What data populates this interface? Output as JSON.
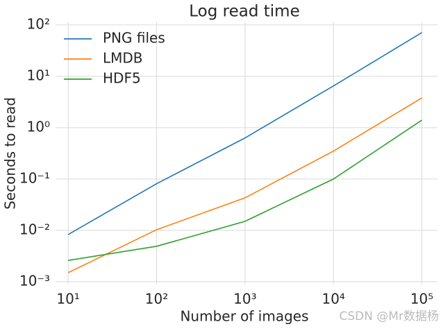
{
  "chart_data": {
    "type": "line",
    "title": "Log read time",
    "x_label": "Number of images",
    "y_label": "Seconds to read",
    "x": [
      10,
      100,
      1000,
      10000,
      100000
    ],
    "series": [
      {
        "name": "PNG files",
        "color": "#1f77b4",
        "values": [
          0.0083,
          0.081,
          0.63,
          6.5,
          71
        ]
      },
      {
        "name": "LMDB",
        "color": "#ff7f0e",
        "values": [
          0.0015,
          0.0103,
          0.043,
          0.35,
          3.8
        ]
      },
      {
        "name": "HDF5",
        "color": "#2ca02c",
        "values": [
          0.0026,
          0.0049,
          0.015,
          0.1,
          1.4
        ]
      }
    ],
    "xscale": "log",
    "yscale": "log",
    "xlim": [
      7.2,
      150000
    ],
    "ylim": [
      0.00088,
      113
    ],
    "xticks": [
      {
        "value": 10,
        "label": "10¹"
      },
      {
        "value": 100,
        "label": "10²"
      },
      {
        "value": 1000,
        "label": "10³"
      },
      {
        "value": 10000,
        "label": "10⁴"
      },
      {
        "value": 100000,
        "label": "10⁵"
      }
    ],
    "yticks": [
      {
        "value": 0.001,
        "label": "10⁻³"
      },
      {
        "value": 0.01,
        "label": "10⁻²"
      },
      {
        "value": 0.1,
        "label": "10⁻¹"
      },
      {
        "value": 1,
        "label": "10⁰"
      },
      {
        "value": 10,
        "label": "10¹"
      },
      {
        "value": 100,
        "label": "10²"
      }
    ],
    "grid": true,
    "legend": "upper left",
    "watermark": "CSDN @Mr数据杨"
  }
}
